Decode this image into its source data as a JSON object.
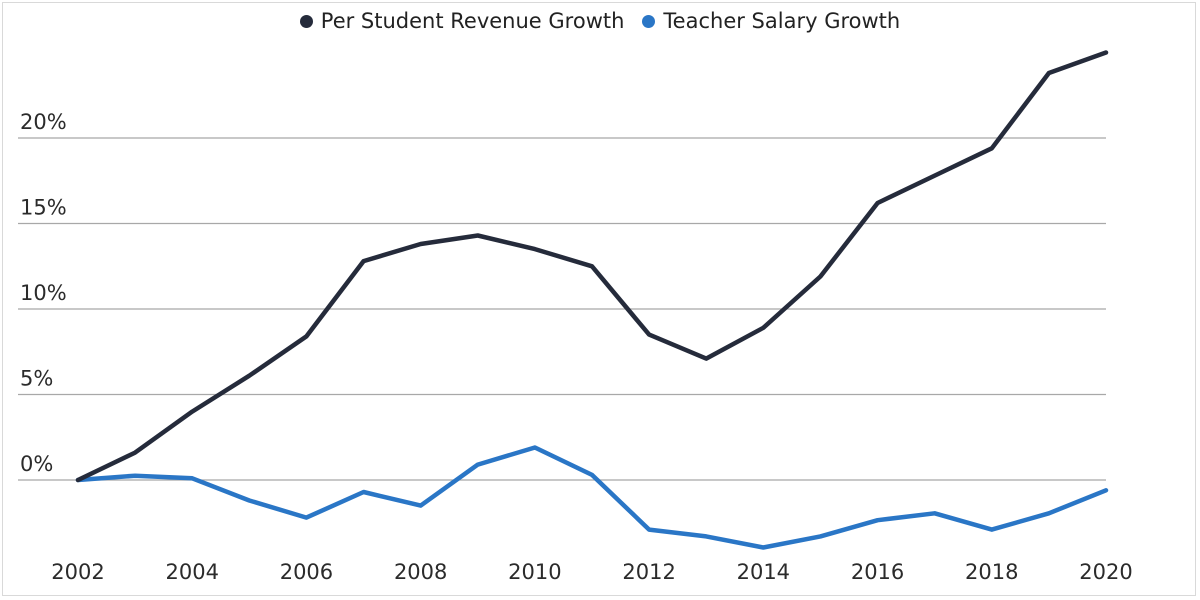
{
  "chart_data": {
    "type": "line",
    "title": "",
    "xlabel": "",
    "ylabel": "",
    "x": [
      2002,
      2003,
      2004,
      2005,
      2006,
      2007,
      2008,
      2009,
      2010,
      2011,
      2012,
      2013,
      2014,
      2015,
      2016,
      2017,
      2018,
      2019,
      2020
    ],
    "x_tick_labels": [
      "2002",
      "2004",
      "2006",
      "2008",
      "2010",
      "2012",
      "2014",
      "2016",
      "2018",
      "2020"
    ],
    "y_tick_values": [
      0,
      5,
      10,
      15,
      20
    ],
    "y_tick_labels": [
      "0%",
      "5%",
      "10%",
      "15%",
      "20%"
    ],
    "ylim": [
      -4.5,
      25
    ],
    "xlim": [
      2002,
      2020
    ],
    "grid": "horizontal",
    "legend_position": "top-center",
    "series": [
      {
        "name": "Per Student Revenue Growth",
        "color": "#252b3b",
        "values": [
          0.0,
          1.6,
          4.0,
          6.1,
          8.4,
          12.8,
          13.8,
          14.3,
          13.5,
          12.5,
          8.5,
          7.1,
          8.9,
          11.9,
          16.2,
          17.8,
          19.4,
          23.8,
          25.0
        ]
      },
      {
        "name": "Teacher Salary Growth",
        "color": "#2a76c6",
        "values": [
          0.0,
          0.25,
          0.1,
          -1.2,
          -2.2,
          -0.7,
          -1.5,
          0.9,
          1.9,
          0.3,
          -2.9,
          -3.3,
          -3.95,
          -3.3,
          -2.35,
          -1.95,
          -2.9,
          -1.95,
          -0.6
        ]
      }
    ]
  }
}
